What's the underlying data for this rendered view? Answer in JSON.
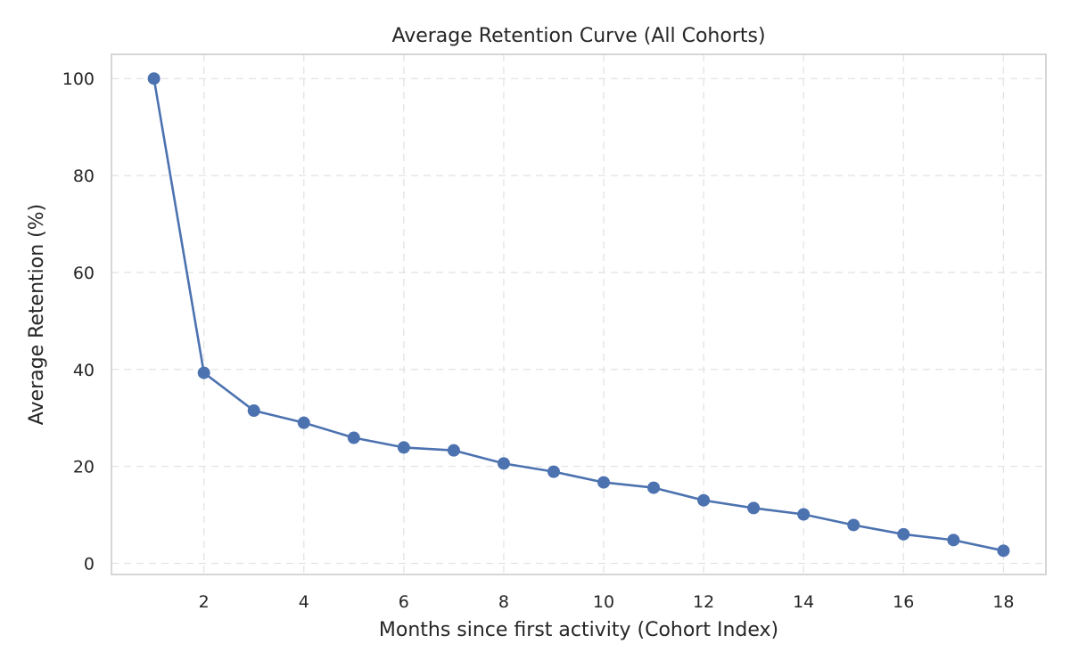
{
  "chart_data": {
    "type": "line",
    "title": "Average Retention Curve (All Cohorts)",
    "xlabel": "Months since first activity (Cohort Index)",
    "ylabel": "Average Retention (%)",
    "xlim": [
      0.15,
      18.85
    ],
    "ylim": [
      -2.3,
      105
    ],
    "xticks": [
      2,
      4,
      6,
      8,
      10,
      12,
      14,
      16,
      18
    ],
    "yticks": [
      0,
      20,
      40,
      60,
      80,
      100
    ],
    "grid": true,
    "legend": "none",
    "colors": {
      "series": "#4c72b0",
      "grid": "#e3e3e3",
      "frame": "#cccccc",
      "text": "#262626"
    },
    "series": [
      {
        "x": [
          1,
          2,
          3,
          4,
          5,
          6,
          7,
          8,
          9,
          10,
          11,
          12,
          13,
          14,
          15,
          16,
          17,
          18
        ],
        "y": [
          100,
          39.3,
          31.5,
          29.0,
          25.9,
          23.9,
          23.3,
          20.6,
          18.9,
          16.7,
          15.6,
          13.0,
          11.4,
          10.1,
          7.9,
          6.0,
          4.8,
          2.6
        ]
      }
    ]
  }
}
